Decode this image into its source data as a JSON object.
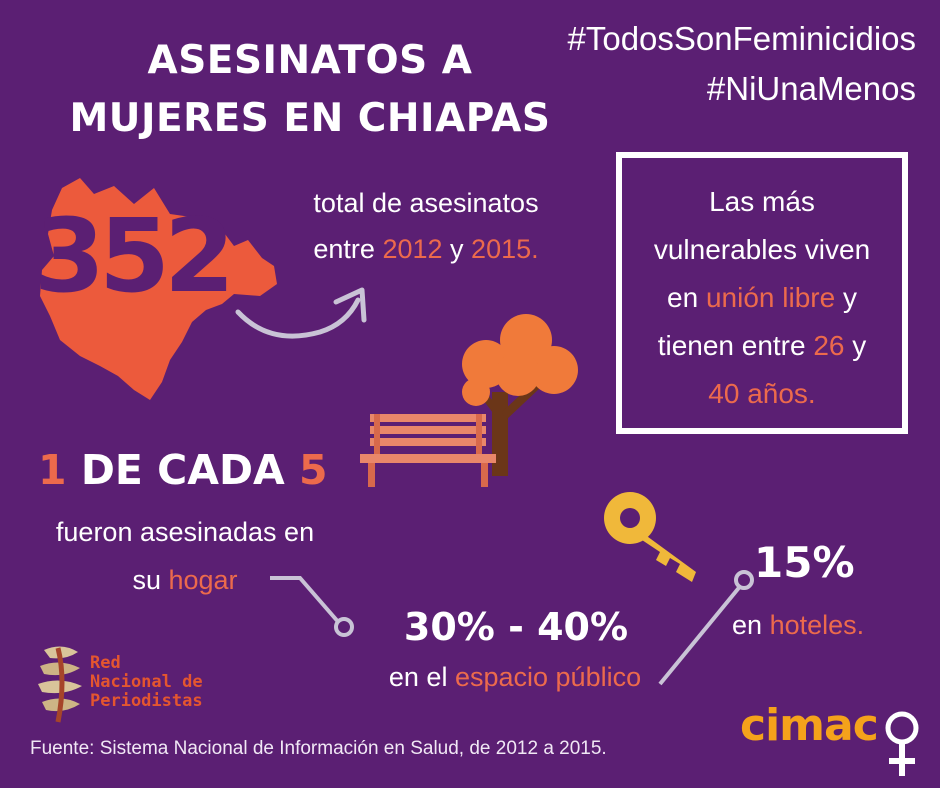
{
  "title": {
    "line1": "ASESINATOS A",
    "line2": "MUJERES EN CHIAPAS"
  },
  "hashtags": [
    "#TodosSonFeminicidios",
    "#NiUnaMenos"
  ],
  "total": {
    "number": "352",
    "line1": "total de asesinatos",
    "line2_pre": "entre",
    "year_start": "2012",
    "line2_mid": "y",
    "year_end": "2015."
  },
  "vulnerable": {
    "line1": "Las más",
    "line2": "vulnerables viven",
    "line3_pre": "en",
    "union": "unión libre",
    "line3_post": "y",
    "line4_pre": "tienen entre",
    "age_min": "26",
    "line4_post": "y",
    "age_max": "40 años."
  },
  "ratio": {
    "one": "1",
    "mid": "DE CADA",
    "five": "5"
  },
  "hogar": {
    "line1": "fueron asesinadas en",
    "line2_pre": "su",
    "place": "hogar"
  },
  "public": {
    "percent": "30% - 40%",
    "pre": "en el",
    "place": "espacio público"
  },
  "hotels": {
    "percent": "15%",
    "pre": "en",
    "place": "hoteles."
  },
  "network": {
    "line1": "Red",
    "line2": "Nacional de",
    "line3": "Periodistas"
  },
  "source": "Fuente: Sistema Nacional de Información en Salud, de 2012 a 2015.",
  "brand": "cimac",
  "colors": {
    "background": "#5b1f73",
    "accent": "#ec6a4c",
    "brand": "#f5a21b",
    "tree": "#f07a3a",
    "key": "#f0b83a"
  },
  "icons": [
    "chiapas-map-icon",
    "arrow-icon",
    "tree-icon",
    "bench-icon",
    "key-icon",
    "network-logo-icon",
    "female-symbol-icon"
  ]
}
